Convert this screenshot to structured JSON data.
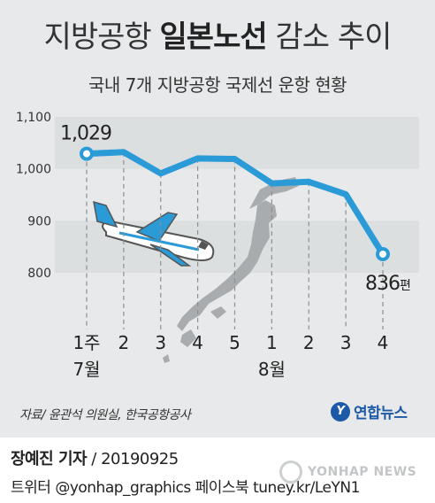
{
  "title": {
    "part1": "지방공항",
    "part2": "일본노선",
    "part3": "감소 추이"
  },
  "subtitle": "국내 7개 지방공항 국제선 운항 현황",
  "source": "자료/ 윤관석 의원실, 한국공항공사",
  "logo": "연합뉴스",
  "footer": {
    "reporter": "장예진 기자",
    "date": " / 20190925",
    "line2": "트위터 @yonhap_graphics  페이스북 tuney.kr/LeYN1"
  },
  "watermark": "YONHAP NEWS",
  "colors": {
    "line": "#2b9bd8",
    "band": "#dcdfe0",
    "card": "#e7e9ea"
  },
  "chart_data": {
    "type": "line",
    "categories": [
      "1주",
      "2",
      "3",
      "4",
      "5",
      "1",
      "2",
      "3",
      "4"
    ],
    "month_labels": [
      {
        "index": 0,
        "label": "7월"
      },
      {
        "index": 5,
        "label": "8월"
      }
    ],
    "values": [
      1029,
      1032,
      991,
      1020,
      1019,
      972,
      975,
      951,
      836
    ],
    "ylim": [
      790,
      1110
    ],
    "yticks": [
      800,
      900,
      1000,
      1100
    ],
    "ytick_labels": [
      "800",
      "900",
      "1,000",
      "1,100"
    ],
    "labels": [
      {
        "index": 0,
        "text": "1,029",
        "unit": ""
      },
      {
        "index": 8,
        "text": "836",
        "unit": "편"
      }
    ],
    "grid": false,
    "legend": "none"
  }
}
